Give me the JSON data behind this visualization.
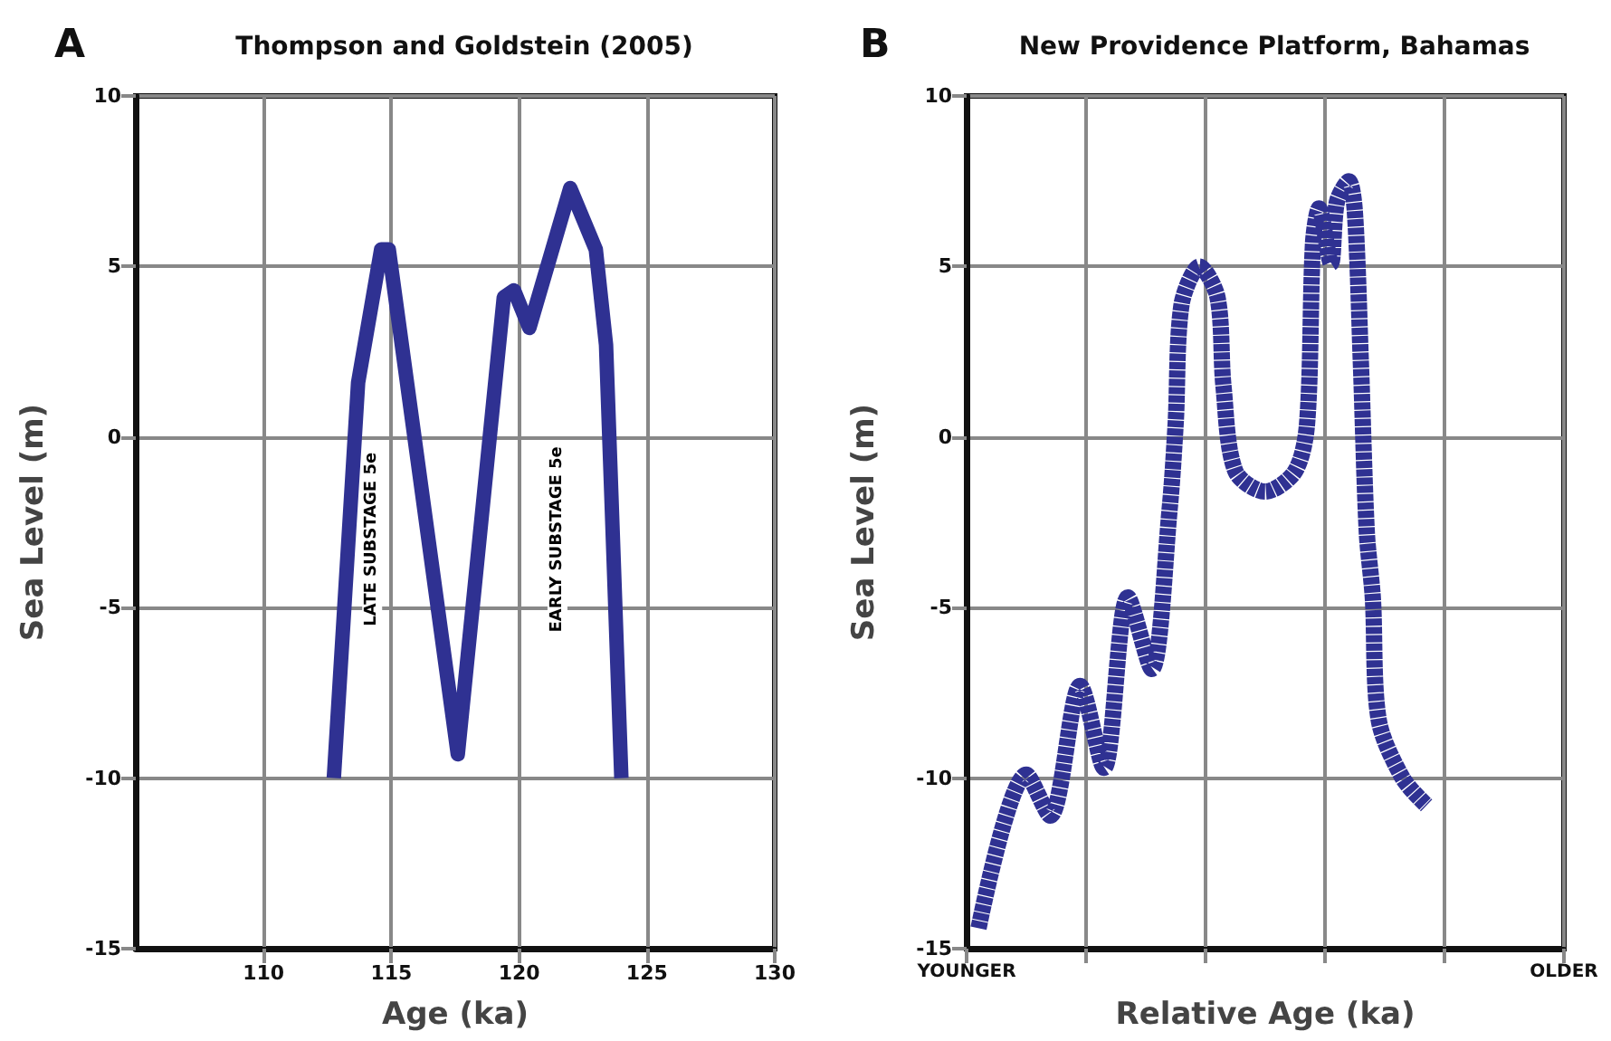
{
  "chart_data": [
    {
      "type": "line",
      "title": "Thompson and Goldstein (2005)",
      "xlabel": "Age (ka)",
      "ylabel": "Sea Level (m)",
      "annotations": [
        "A",
        "LATE SUBSTAGE 5e",
        "EARLY SUBSTAGE 5e"
      ],
      "xlim": [
        105,
        130
      ],
      "xticks": [
        110,
        115,
        120,
        125,
        130
      ],
      "ylim": [
        -15,
        10
      ],
      "yticks": [
        -15,
        -10,
        -5,
        0,
        5,
        10
      ],
      "grid": true,
      "marker": "none",
      "line_style": "solid",
      "series": [
        {
          "color": "#2f3192",
          "x": [
            112.75,
            113.7,
            114.6,
            114.9,
            117.6,
            119.4,
            119.8,
            120.4,
            122.0,
            123.0,
            123.4,
            124.0
          ],
          "values": [
            -10,
            1.6,
            5.5,
            5.5,
            -9.3,
            4.1,
            4.3,
            3.2,
            7.3,
            5.5,
            2.7,
            -10
          ]
        }
      ]
    },
    {
      "type": "line",
      "title": "New Providence Platform, Bahamas",
      "xlabel": "Relative Age (ka)",
      "ylabel": "Sea Level (m)",
      "annotations": [
        "B"
      ],
      "categories": [
        "YOUNGER",
        null,
        null,
        null,
        null,
        null,
        null,
        null,
        null,
        null,
        null,
        null,
        null,
        null,
        null,
        null,
        null,
        null,
        null,
        null,
        null,
        null,
        null,
        null,
        null,
        null,
        null,
        null,
        null,
        null,
        null,
        null,
        null,
        null,
        null,
        null,
        null,
        null,
        null,
        null,
        null,
        null,
        null,
        null,
        null,
        null,
        null,
        null,
        null,
        null,
        null,
        null,
        null,
        null,
        null,
        null,
        null,
        null,
        null,
        null,
        null,
        null,
        null,
        null,
        null,
        null,
        null,
        null,
        null,
        null,
        null,
        null,
        null,
        null,
        null,
        null,
        null,
        null,
        null,
        null,
        null,
        null,
        null,
        null,
        null,
        null,
        null,
        null,
        null,
        null,
        null,
        null,
        null,
        null,
        null,
        null,
        null,
        null,
        null,
        null,
        "OLDER"
      ],
      "ylim": [
        -15,
        10
      ],
      "yticks": [
        -15,
        -10,
        -5,
        0,
        5,
        10
      ],
      "grid": true,
      "marker": "none",
      "line_style": "dashed",
      "series": [
        {
          "color": "#2f3192",
          "values": [
            null,
            null,
            -14.4,
            null,
            null,
            null,
            null,
            null,
            null,
            null,
            -9.9,
            null,
            null,
            null,
            -11.1,
            null,
            null,
            null,
            null,
            -7.3,
            null,
            null,
            null,
            -9.7,
            null,
            null,
            null,
            -4.7,
            null,
            null,
            null,
            -6.8,
            null,
            null,
            -2.1,
            0.4,
            3.9,
            null,
            null,
            5.0,
            null,
            null,
            4.1,
            1.5,
            null,
            -1.0,
            null,
            null,
            null,
            null,
            -1.6,
            null,
            null,
            null,
            null,
            -1.0,
            null,
            0.4,
            5.7,
            6.7,
            null,
            5.1,
            6.9,
            null,
            7.5,
            6.6,
            2.2,
            -2.8,
            -4.7,
            -8.3,
            null,
            null,
            null,
            -10.0,
            null,
            null,
            null,
            -10.8,
            null,
            null,
            null,
            null,
            null,
            null,
            null,
            null,
            null,
            null,
            null,
            null,
            null,
            null,
            null,
            null,
            null,
            null,
            null,
            null,
            null,
            null,
            null
          ]
        }
      ]
    }
  ]
}
